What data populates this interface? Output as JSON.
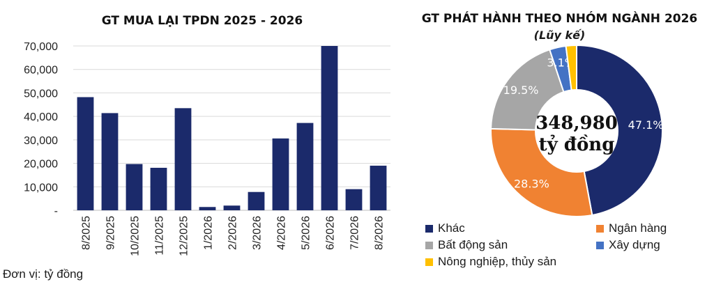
{
  "unit_note": "Đơn vị: tỷ đồng",
  "chart_data": [
    {
      "type": "bar",
      "title": "GT MUA LẠI TPDN 2025 - 2026",
      "categories": [
        "8/2025",
        "9/2025",
        "10/2025",
        "11/2025",
        "12/2025",
        "1/2026",
        "2/2026",
        "3/2026",
        "4/2026",
        "5/2026",
        "6/2026",
        "7/2026",
        "8/2026"
      ],
      "values": [
        48200,
        41400,
        19700,
        18100,
        43500,
        1400,
        2000,
        7800,
        30600,
        37200,
        70000,
        9000,
        19000
      ],
      "ylim": [
        0,
        70000
      ],
      "yticks": [
        "-",
        "10,000",
        "20,000",
        "30,000",
        "40,000",
        "50,000",
        "60,000",
        "70,000"
      ],
      "ytick_values": [
        0,
        10000,
        20000,
        30000,
        40000,
        50000,
        60000,
        70000
      ],
      "grid": true,
      "color": "#1b2a6b"
    },
    {
      "type": "pie",
      "title": "GT PHÁT HÀNH THEO NHÓM NGÀNH 2026",
      "subtitle": "(Lũy kế)",
      "center_value": "348,980",
      "center_unit": "tỷ đồng",
      "legend_position": "bottom",
      "slices": [
        {
          "name": "Khác",
          "value": 47.1,
          "label": "47.1%",
          "color": "#1b2a6b"
        },
        {
          "name": "Ngân hàng",
          "value": 28.3,
          "label": "28.3%",
          "color": "#f08232"
        },
        {
          "name": "Bất động sản",
          "value": 19.5,
          "label": "19.5%",
          "color": "#a6a6a6"
        },
        {
          "name": "Xây dựng",
          "value": 3.1,
          "label": "3.1%",
          "color": "#4472c4"
        },
        {
          "name": "Nông nghiệp, thủy sản",
          "value": 2.0,
          "label": "",
          "color": "#ffc000"
        }
      ]
    }
  ]
}
